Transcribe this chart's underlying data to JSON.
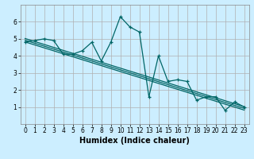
{
  "xlabel": "Humidex (Indice chaleur)",
  "background_color": "#cceeff",
  "grid_color": "#b0b0b0",
  "line_color": "#006666",
  "xlim": [
    -0.5,
    23.5
  ],
  "ylim": [
    0,
    7
  ],
  "xticks": [
    0,
    1,
    2,
    3,
    4,
    5,
    6,
    7,
    8,
    9,
    10,
    11,
    12,
    13,
    14,
    15,
    16,
    17,
    18,
    19,
    20,
    21,
    22,
    23
  ],
  "yticks": [
    1,
    2,
    3,
    4,
    5,
    6
  ],
  "series": [
    [
      0,
      4.8
    ],
    [
      1,
      4.9
    ],
    [
      2,
      5.0
    ],
    [
      3,
      4.9
    ],
    [
      4,
      4.1
    ],
    [
      5,
      4.1
    ],
    [
      6,
      4.3
    ],
    [
      7,
      4.8
    ],
    [
      8,
      3.7
    ],
    [
      9,
      4.8
    ],
    [
      10,
      6.3
    ],
    [
      11,
      5.7
    ],
    [
      12,
      5.4
    ],
    [
      13,
      1.6
    ],
    [
      14,
      4.0
    ],
    [
      15,
      2.5
    ],
    [
      16,
      2.6
    ],
    [
      17,
      2.5
    ],
    [
      18,
      1.4
    ],
    [
      19,
      1.6
    ],
    [
      20,
      1.6
    ],
    [
      21,
      0.8
    ],
    [
      22,
      1.3
    ],
    [
      23,
      1.0
    ]
  ],
  "regression_lines": [
    {
      "start_x": 0,
      "start_y": 4.92,
      "end_x": 23,
      "end_y": 0.92
    },
    {
      "start_x": 0,
      "start_y": 4.82,
      "end_x": 23,
      "end_y": 0.82
    },
    {
      "start_x": 0,
      "start_y": 5.02,
      "end_x": 23,
      "end_y": 1.02
    }
  ],
  "tick_fontsize": 5.5,
  "xlabel_fontsize": 7.0,
  "grid_linewidth": 0.5,
  "line_linewidth": 0.9,
  "marker_size": 3.0
}
